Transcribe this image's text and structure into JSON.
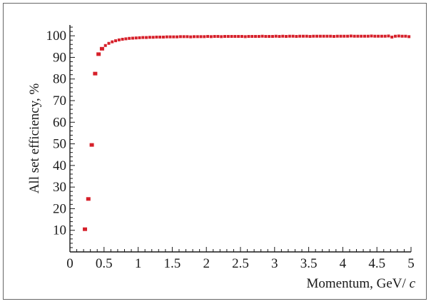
{
  "chart_data": {
    "type": "scatter",
    "title": "",
    "xlabel": "Momentum, GeV/c",
    "ylabel": "All set efficiency, %",
    "xlim": [
      0,
      5
    ],
    "ylim": [
      0,
      105
    ],
    "x_ticks": [
      "0",
      "0.5",
      "1",
      "1.5",
      "2",
      "2.5",
      "3",
      "3.5",
      "4",
      "4.5",
      "5"
    ],
    "y_ticks": [
      "10",
      "20",
      "30",
      "40",
      "50",
      "60",
      "70",
      "80",
      "90",
      "100"
    ],
    "grid": false,
    "marker_color": "#d6202a",
    "series": [
      {
        "x": [
          0.22,
          0.27,
          0.32,
          0.37,
          0.42,
          0.47,
          0.52,
          0.57,
          0.62,
          0.67,
          0.72,
          0.77,
          0.82,
          0.87,
          0.92,
          0.97,
          1.02,
          1.07,
          1.12,
          1.17,
          1.22,
          1.27,
          1.32,
          1.37,
          1.42,
          1.47,
          1.52,
          1.57,
          1.62,
          1.67,
          1.72,
          1.77,
          1.82,
          1.87,
          1.92,
          1.97,
          2.02,
          2.07,
          2.12,
          2.17,
          2.22,
          2.27,
          2.32,
          2.37,
          2.42,
          2.47,
          2.52,
          2.57,
          2.62,
          2.67,
          2.72,
          2.77,
          2.82,
          2.87,
          2.92,
          2.97,
          3.02,
          3.07,
          3.12,
          3.17,
          3.22,
          3.27,
          3.32,
          3.37,
          3.42,
          3.47,
          3.52,
          3.57,
          3.62,
          3.67,
          3.72,
          3.77,
          3.82,
          3.87,
          3.92,
          3.97,
          4.02,
          4.07,
          4.12,
          4.17,
          4.22,
          4.27,
          4.32,
          4.37,
          4.42,
          4.47,
          4.52,
          4.57,
          4.62,
          4.67,
          4.72,
          4.77,
          4.82,
          4.87,
          4.92,
          4.97
        ],
        "y": [
          10.5,
          24.5,
          49.5,
          82.5,
          91.5,
          94.0,
          95.5,
          96.5,
          97.2,
          97.7,
          98.1,
          98.4,
          98.6,
          98.8,
          98.9,
          99.0,
          99.1,
          99.2,
          99.2,
          99.3,
          99.3,
          99.4,
          99.4,
          99.4,
          99.5,
          99.5,
          99.5,
          99.5,
          99.6,
          99.6,
          99.6,
          99.5,
          99.6,
          99.6,
          99.6,
          99.6,
          99.7,
          99.6,
          99.7,
          99.7,
          99.6,
          99.7,
          99.7,
          99.7,
          99.7,
          99.7,
          99.7,
          99.6,
          99.7,
          99.7,
          99.7,
          99.7,
          99.8,
          99.7,
          99.7,
          99.7,
          99.8,
          99.7,
          99.8,
          99.7,
          99.8,
          99.8,
          99.7,
          99.8,
          99.8,
          99.8,
          99.7,
          99.8,
          99.8,
          99.8,
          99.8,
          99.8,
          99.8,
          99.7,
          99.8,
          99.8,
          99.8,
          99.8,
          99.9,
          99.8,
          99.8,
          99.8,
          99.8,
          99.8,
          99.9,
          99.8,
          99.8,
          99.8,
          99.8,
          99.9,
          99.4,
          99.8,
          99.9,
          99.8,
          99.8,
          99.6
        ]
      }
    ]
  }
}
